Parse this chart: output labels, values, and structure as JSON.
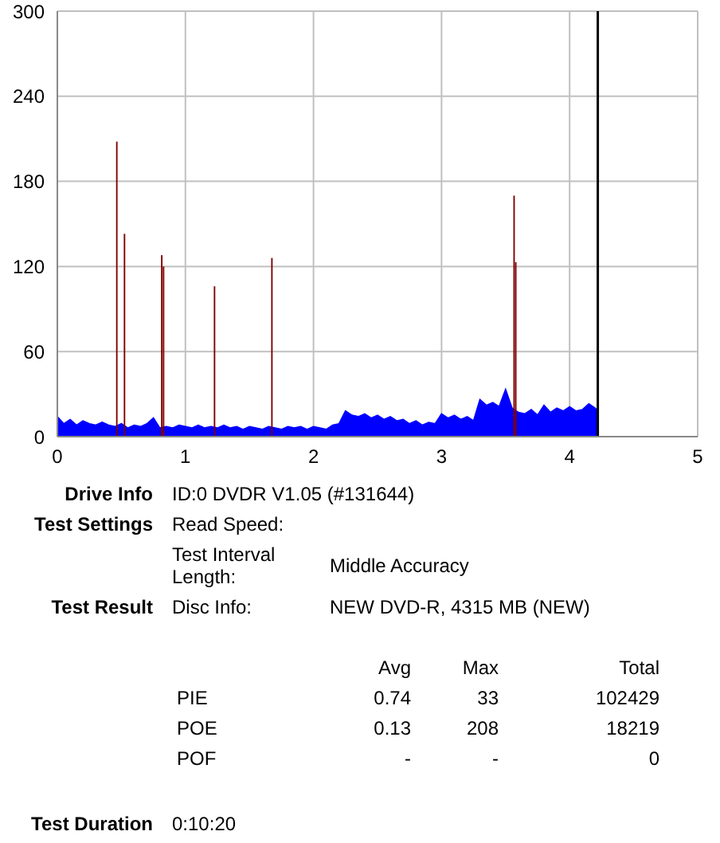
{
  "chart_data": {
    "type": "area",
    "xlim": [
      0,
      5
    ],
    "xticks": [
      0,
      1,
      2,
      3,
      4,
      5
    ],
    "ylim": [
      0,
      300
    ],
    "yticks": [
      0,
      60,
      120,
      180,
      240,
      300
    ],
    "grid": true,
    "legend": false,
    "series": [
      {
        "color": "#0000ff",
        "x": [
          0,
          0.05,
          0.1,
          0.15,
          0.2,
          0.25,
          0.3,
          0.35,
          0.4,
          0.45,
          0.5,
          0.55,
          0.6,
          0.65,
          0.7,
          0.75,
          0.8,
          0.85,
          0.9,
          0.95,
          1.0,
          1.05,
          1.1,
          1.15,
          1.2,
          1.25,
          1.3,
          1.35,
          1.4,
          1.45,
          1.5,
          1.55,
          1.6,
          1.65,
          1.7,
          1.75,
          1.8,
          1.85,
          1.9,
          1.95,
          2.0,
          2.05,
          2.1,
          2.15,
          2.2,
          2.25,
          2.3,
          2.35,
          2.4,
          2.45,
          2.5,
          2.55,
          2.6,
          2.65,
          2.7,
          2.75,
          2.8,
          2.85,
          2.9,
          2.95,
          3.0,
          3.05,
          3.1,
          3.15,
          3.2,
          3.25,
          3.3,
          3.35,
          3.4,
          3.45,
          3.5,
          3.55,
          3.6,
          3.65,
          3.7,
          3.75,
          3.8,
          3.85,
          3.9,
          3.95,
          4.0,
          4.05,
          4.1,
          4.15,
          4.2,
          4.22
        ],
        "values": [
          14,
          9,
          12,
          8,
          11,
          9,
          8,
          10,
          8,
          7,
          9,
          6,
          8,
          7,
          9,
          13,
          6,
          7,
          6,
          8,
          7,
          6,
          8,
          6,
          7,
          6,
          8,
          6,
          7,
          5,
          7,
          6,
          5,
          7,
          6,
          5,
          7,
          6,
          7,
          5,
          7,
          6,
          5,
          8,
          9,
          18,
          15,
          14,
          16,
          13,
          15,
          12,
          14,
          11,
          12,
          9,
          11,
          8,
          10,
          9,
          16,
          13,
          15,
          12,
          14,
          11,
          26,
          22,
          24,
          21,
          33,
          20,
          17,
          16,
          19,
          15,
          22,
          17,
          20,
          18,
          21,
          18,
          19,
          23,
          20,
          18
        ]
      },
      {
        "type": "bar",
        "color": "#800000",
        "x": [
          0.465,
          0.525,
          0.816,
          0.83,
          1.228,
          1.676,
          3.567,
          3.58
        ],
        "values": [
          208,
          143,
          128,
          120,
          106,
          126,
          170,
          123
        ]
      }
    ],
    "ref_lines": [
      {
        "axis": "x",
        "value": 4.22,
        "color": "#000000"
      }
    ],
    "annotations": [
      "Drive Info",
      "ID:0 DVDR V1.05 (#131644)",
      "Test Settings",
      "Read Speed:",
      "Test Interval Length:",
      "Middle Accuracy",
      "Test Result",
      "Disc Info:",
      "NEW DVD-R, 4315 MB (NEW)",
      "Avg",
      "Max",
      "Total",
      "PIE",
      "0.74",
      "33",
      "102429",
      "POE",
      "0.13",
      "208",
      "18219",
      "POF",
      "-",
      "-",
      "0",
      "Test Duration",
      "0:10:20"
    ]
  }
}
